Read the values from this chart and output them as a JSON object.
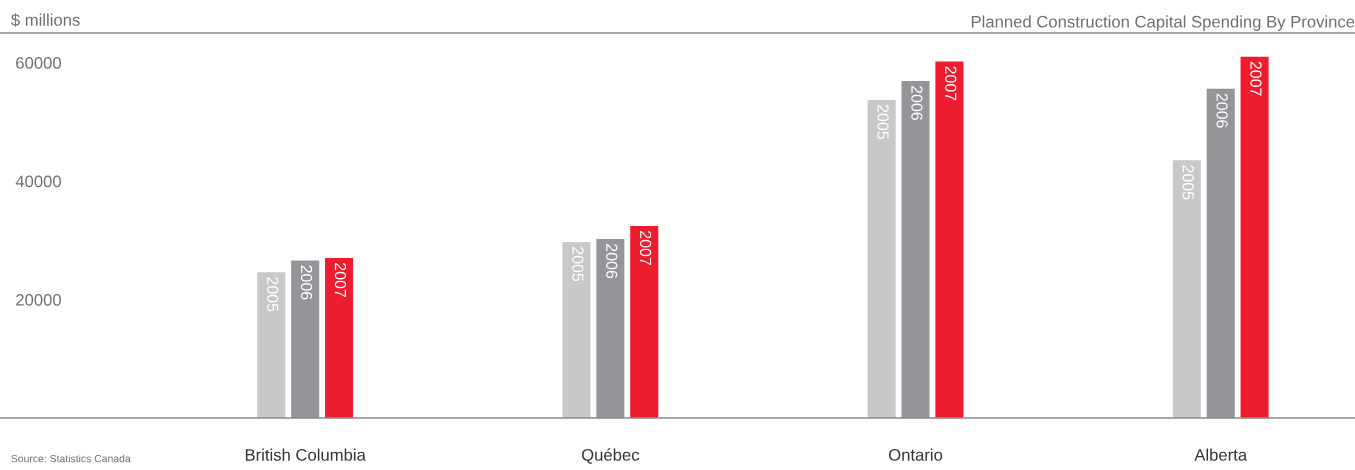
{
  "chart_data": {
    "type": "bar",
    "title": "Planned Construction Capital Spending By Province",
    "ylabel": "$ millions",
    "categories": [
      "British Columbia",
      "Québec",
      "Ontario",
      "Alberta"
    ],
    "series": [
      {
        "name": "2005",
        "color": "#c8c8ca",
        "values": [
          24600,
          29700,
          53700,
          43500
        ]
      },
      {
        "name": "2006",
        "color": "#939598",
        "values": [
          26600,
          30200,
          56900,
          55600
        ]
      },
      {
        "name": "2007",
        "color": "#ed1c2e",
        "values": [
          27000,
          32400,
          60200,
          61000
        ]
      }
    ],
    "ylim": [
      0,
      65000
    ],
    "yticks": [
      20000,
      40000,
      60000
    ],
    "grid": false,
    "legend": false,
    "annotations": [
      "Source: Statistics Canada"
    ]
  }
}
